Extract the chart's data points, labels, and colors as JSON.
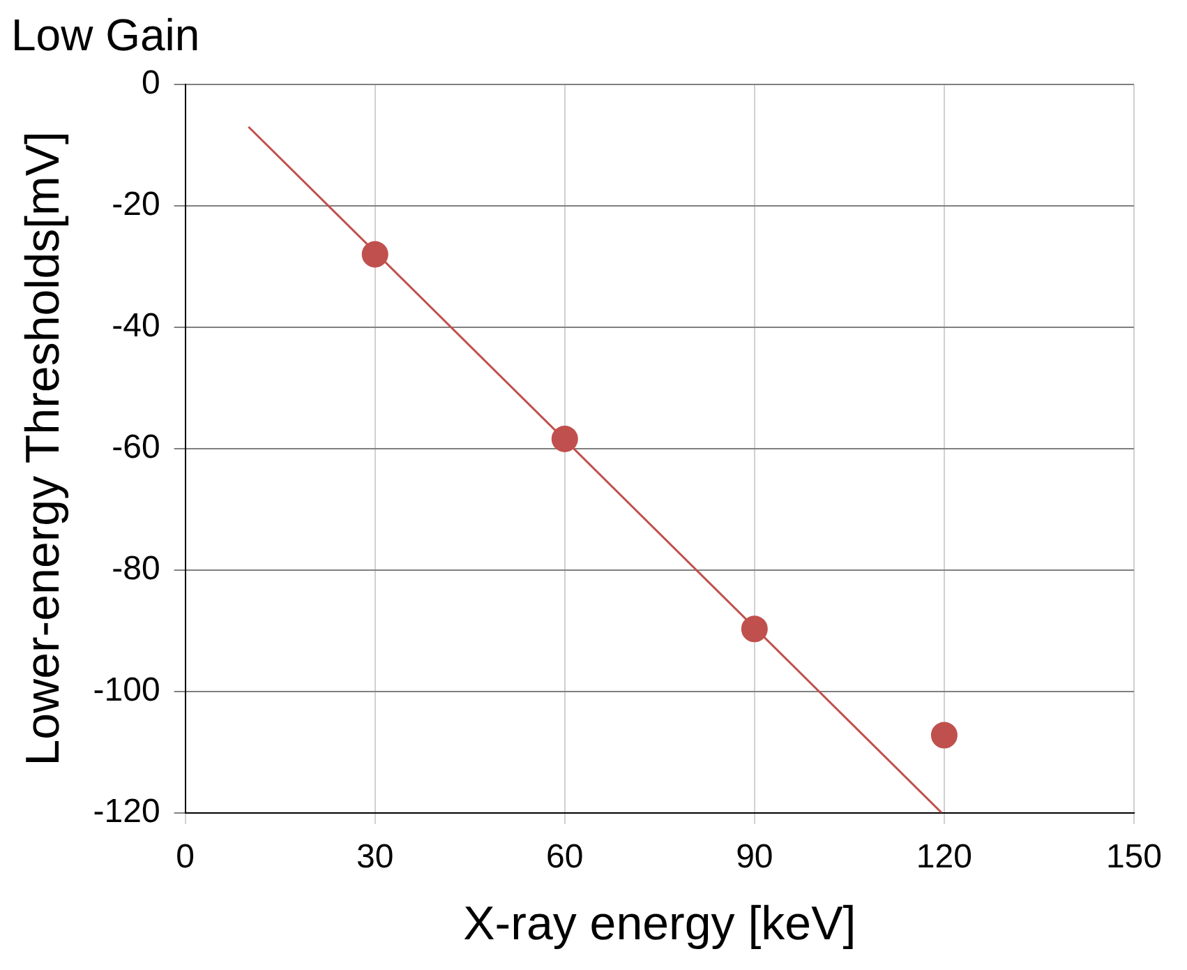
{
  "chart_data": {
    "type": "scatter",
    "title": "Low Gain",
    "xlabel": "X-ray energy [keV]",
    "ylabel": "Lower-energy Thresholds[mV]",
    "xlim": [
      0,
      150
    ],
    "xticks": [
      0,
      30,
      60,
      90,
      120,
      150
    ],
    "ylim": [
      -120,
      0
    ],
    "yticks": [
      -120,
      -100,
      -80,
      -60,
      -40,
      -20,
      0
    ],
    "grid": true,
    "legend": false,
    "series": [
      {
        "type": "scatter",
        "color": "#c0504d",
        "marker": "circle",
        "x": [
          30,
          60,
          90,
          120
        ],
        "values": [
          -28,
          -58.4,
          -89.7,
          -107.2
        ]
      },
      {
        "type": "line",
        "color": "#c0504d",
        "marker": "none",
        "line_style": "solid",
        "x": [
          10,
          119.6
        ],
        "values": [
          -7,
          -120
        ]
      }
    ]
  }
}
